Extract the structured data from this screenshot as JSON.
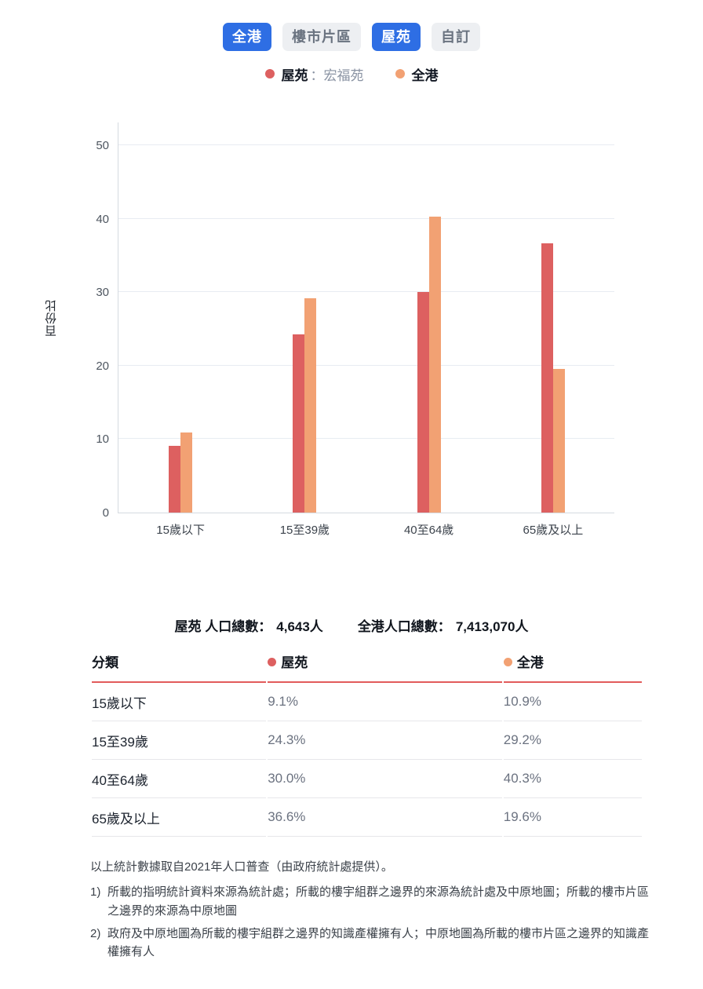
{
  "tabs": [
    {
      "label": "全港",
      "active": true
    },
    {
      "label": "樓市片區",
      "active": false
    },
    {
      "label": "屋苑",
      "active": true
    },
    {
      "label": "自訂",
      "active": false
    }
  ],
  "legend": {
    "estate_label": "屋苑",
    "estate_name": "：宏福苑",
    "hk_label": "全港"
  },
  "chart_data": {
    "type": "bar",
    "title": "",
    "xlabel": "",
    "ylabel": "百份比",
    "categories": [
      "15歲以下",
      "15至39歲",
      "40至64歲",
      "65歲及以上"
    ],
    "series": [
      {
        "name": "屋苑",
        "color": "#dd6060",
        "values": [
          9.1,
          24.3,
          30.0,
          36.6
        ]
      },
      {
        "name": "全港",
        "color": "#f2a173",
        "values": [
          10.9,
          29.2,
          40.3,
          19.6
        ]
      }
    ],
    "ylim": [
      0,
      53.2
    ],
    "yticks": [
      0,
      10,
      20,
      30,
      40,
      50
    ],
    "grid": true,
    "legend_position": "top"
  },
  "totals": {
    "estate_label": "屋苑 人口總數：",
    "estate_value": "4,643人",
    "hk_label": "全港人口總數：",
    "hk_value": "7,413,070人"
  },
  "table": {
    "headers": [
      "分類",
      "屋苑",
      "全港"
    ],
    "rows": [
      {
        "label": "15歲以下",
        "estate": "9.1%",
        "hk": "10.9%"
      },
      {
        "label": "15至39歲",
        "estate": "24.3%",
        "hk": "29.2%"
      },
      {
        "label": "40至64歲",
        "estate": "30.0%",
        "hk": "40.3%"
      },
      {
        "label": "65歲及以上",
        "estate": "36.6%",
        "hk": "19.6%"
      }
    ]
  },
  "footnotes": {
    "intro": "以上統計數據取自2021年人口普查（由政府統計處提供）。",
    "items": [
      {
        "marker": "1)",
        "text": "所載的指明統計資料來源為統計處；所載的樓宇組群之邊界的來源為統計處及中原地圖；所載的樓市片區之邊界的來源為中原地圖"
      },
      {
        "marker": "2)",
        "text": "政府及中原地圖為所載的樓宇組群之邊界的知識產權擁有人；中原地圖為所載的樓市片區之邊界的知識產權擁有人"
      }
    ]
  },
  "colors": {
    "accent_blue": "#2e6ee4",
    "inactive_tab_bg": "#edeff2",
    "estate_red": "#dd6060",
    "hk_orange": "#f2a173",
    "header_rule_red": "#e25b5b",
    "gridline": "#e8ecf2"
  }
}
